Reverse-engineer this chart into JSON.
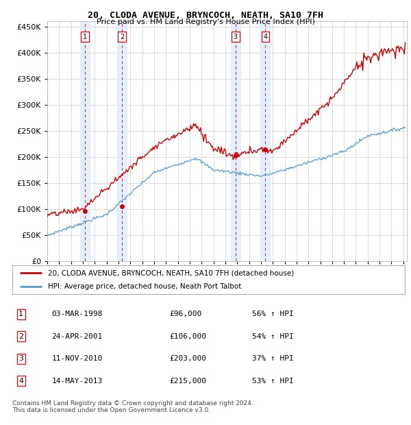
{
  "title": "20, CLODA AVENUE, BRYNCOCH, NEATH, SA10 7FH",
  "subtitle": "Price paid vs. HM Land Registry's House Price Index (HPI)",
  "ylim": [
    0,
    460000
  ],
  "yticks": [
    0,
    50000,
    100000,
    150000,
    200000,
    250000,
    300000,
    350000,
    400000,
    450000
  ],
  "xlim_start": 1995.0,
  "xlim_end": 2025.3,
  "sale_color": "#cc0000",
  "hpi_color": "#5599cc",
  "transaction_color_bg": "#ddeeff",
  "transaction_vline_color": "#dd3333",
  "sales": [
    {
      "date_num": 1998.17,
      "price": 96000,
      "label": "1"
    },
    {
      "date_num": 2001.31,
      "price": 106000,
      "label": "2"
    },
    {
      "date_num": 2010.86,
      "price": 203000,
      "label": "3"
    },
    {
      "date_num": 2013.37,
      "price": 215000,
      "label": "4"
    }
  ],
  "legend_sale_label": "20, CLODA AVENUE, BRYNCOCH, NEATH, SA10 7FH (detached house)",
  "legend_hpi_label": "HPI: Average price, detached house, Neath Port Talbot",
  "table_rows": [
    {
      "num": "1",
      "date": "03-MAR-1998",
      "price": "£96,000",
      "hpi": "56% ↑ HPI"
    },
    {
      "num": "2",
      "date": "24-APR-2001",
      "price": "£106,000",
      "hpi": "54% ↑ HPI"
    },
    {
      "num": "3",
      "date": "11-NOV-2010",
      "price": "£203,000",
      "hpi": "37% ↑ HPI"
    },
    {
      "num": "4",
      "date": "14-MAY-2013",
      "price": "£215,000",
      "hpi": "53% ↑ HPI"
    }
  ],
  "footnote": "Contains HM Land Registry data © Crown copyright and database right 2024.\nThis data is licensed under the Open Government Licence v3.0.",
  "background_color": "#ffffff",
  "grid_color": "#cccccc"
}
